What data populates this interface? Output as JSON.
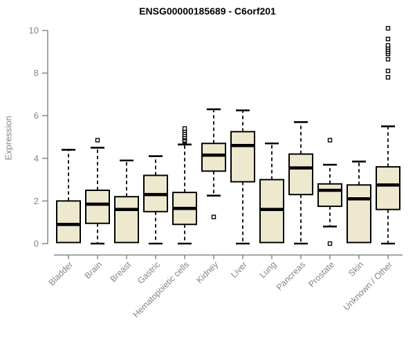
{
  "chart_data": {
    "type": "boxplot",
    "title": "ENSG00000185689 - C6orf201",
    "ylabel": "Expression",
    "xlabel": "",
    "ylim": [
      0,
      10
    ],
    "yticks": [
      0,
      2,
      4,
      6,
      8,
      10
    ],
    "grid": false,
    "legend": false,
    "categories": [
      "Bladder",
      "Brain",
      "Breast",
      "Gastric",
      "Hematopoietic cells",
      "Kidney",
      "Liver",
      "Lung",
      "Pancreas",
      "Prostate",
      "Skin",
      "Unknown / Other"
    ],
    "series": [
      {
        "name": "Bladder",
        "whisker_low": 0.05,
        "q1": 0.05,
        "median": 0.9,
        "q3": 2.0,
        "whisker_high": 4.4,
        "outliers": []
      },
      {
        "name": "Brain",
        "whisker_low": 0.0,
        "q1": 0.95,
        "median": 1.85,
        "q3": 2.5,
        "whisker_high": 4.5,
        "outliers": [
          4.85
        ]
      },
      {
        "name": "Breast",
        "whisker_low": 0.05,
        "q1": 0.05,
        "median": 1.6,
        "q3": 2.2,
        "whisker_high": 3.9,
        "outliers": []
      },
      {
        "name": "Gastric",
        "whisker_low": 0.0,
        "q1": 1.5,
        "median": 2.3,
        "q3": 3.2,
        "whisker_high": 4.1,
        "outliers": []
      },
      {
        "name": "Hematopoietic cells",
        "whisker_low": 0.0,
        "q1": 0.9,
        "median": 1.65,
        "q3": 2.4,
        "whisker_high": 4.65,
        "outliers": [
          4.8,
          4.85,
          4.95,
          5.0,
          5.1,
          5.2,
          5.3,
          5.4
        ]
      },
      {
        "name": "Kidney",
        "whisker_low": 2.25,
        "q1": 3.4,
        "median": 4.15,
        "q3": 4.7,
        "whisker_high": 6.3,
        "outliers": [
          1.25
        ]
      },
      {
        "name": "Liver",
        "whisker_low": 0.0,
        "q1": 2.9,
        "median": 4.6,
        "q3": 5.25,
        "whisker_high": 6.25,
        "outliers": []
      },
      {
        "name": "Lung",
        "whisker_low": 0.05,
        "q1": 0.05,
        "median": 1.6,
        "q3": 3.0,
        "whisker_high": 4.7,
        "outliers": []
      },
      {
        "name": "Pancreas",
        "whisker_low": 0.0,
        "q1": 2.3,
        "median": 3.55,
        "q3": 4.2,
        "whisker_high": 5.7,
        "outliers": []
      },
      {
        "name": "Prostate",
        "whisker_low": 0.8,
        "q1": 1.75,
        "median": 2.5,
        "q3": 2.8,
        "whisker_high": 3.7,
        "outliers": [
          4.85,
          0.0
        ]
      },
      {
        "name": "Skin",
        "whisker_low": 0.05,
        "q1": 0.05,
        "median": 2.1,
        "q3": 2.75,
        "whisker_high": 3.85,
        "outliers": []
      },
      {
        "name": "Unknown / Other",
        "whisker_low": 0.0,
        "q1": 1.6,
        "median": 2.75,
        "q3": 3.6,
        "whisker_high": 5.5,
        "outliers": [
          7.8,
          8.1,
          8.65,
          8.9,
          9.0,
          9.1,
          9.2,
          9.3,
          9.6,
          10.1
        ]
      }
    ],
    "colors": {
      "box_fill": "#EEE8CF",
      "box_stroke": "#000000",
      "median": "#000000",
      "whisker": "#000000",
      "outlier_fill": "#ffffff",
      "axis": "#848484",
      "tick_label": "#848484",
      "title": "#000000",
      "background": "#ffffff"
    }
  }
}
